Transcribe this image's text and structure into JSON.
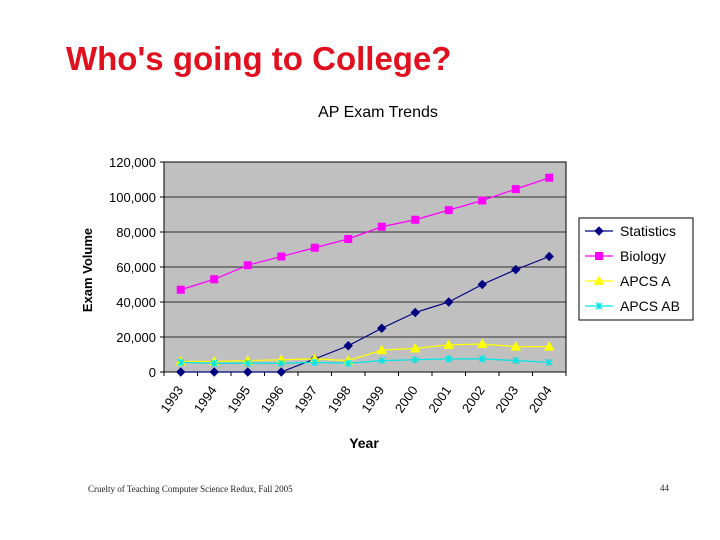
{
  "slide": {
    "title": "Who's going to College?",
    "footer": "Cruelty of Teaching Computer Science Redux, Fall 2005",
    "page_number": "44"
  },
  "chart_data": {
    "type": "line",
    "title": "AP Exam Trends",
    "xlabel": "Year",
    "ylabel": "Exam Volume",
    "categories": [
      "1993",
      "1994",
      "1995",
      "1996",
      "1997",
      "1998",
      "1999",
      "2000",
      "2001",
      "2002",
      "2003",
      "2004"
    ],
    "ylim": [
      0,
      120000
    ],
    "yticks": [
      0,
      20000,
      40000,
      60000,
      80000,
      100000,
      120000
    ],
    "ytick_labels": [
      "0",
      "20,000",
      "40,000",
      "60,000",
      "80,000",
      "100,000",
      "120,000"
    ],
    "grid": true,
    "plot_background": "#c0c0c0",
    "legend_position": "right",
    "series": [
      {
        "name": "Statistics",
        "color": "#000080",
        "marker": "diamond",
        "values": [
          0,
          0,
          0,
          0,
          7500,
          15000,
          25000,
          34000,
          40000,
          50000,
          58500,
          66000
        ]
      },
      {
        "name": "Biology",
        "color": "#ff00ff",
        "marker": "square",
        "values": [
          47000,
          53000,
          61000,
          66000,
          71000,
          76000,
          83000,
          87000,
          92500,
          98000,
          104500,
          111000
        ]
      },
      {
        "name": "APCS A",
        "color": "#ffff00",
        "marker": "triangle",
        "values": [
          6000,
          6000,
          6500,
          7000,
          7500,
          6500,
          12500,
          13500,
          15500,
          16000,
          14500,
          14500
        ]
      },
      {
        "name": "APCS AB",
        "color": "#00e5e5",
        "marker": "x",
        "values": [
          5500,
          5000,
          5000,
          5000,
          5500,
          5000,
          6500,
          7000,
          7500,
          7500,
          6500,
          5500
        ]
      }
    ]
  }
}
